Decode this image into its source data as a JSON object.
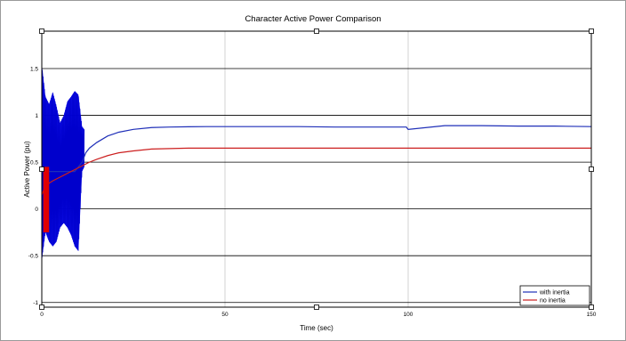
{
  "chart_data": {
    "type": "line",
    "title": "Character Active Power Comparison",
    "xlabel": "Time (sec)",
    "ylabel": "Active Power (pu)",
    "xlim": [
      0,
      150
    ],
    "ylim": [
      -1.05,
      1.9
    ],
    "xticks": [
      "0",
      "50",
      "100",
      "150"
    ],
    "yticks": [
      "-1",
      "-0.5",
      "0",
      "0.5",
      "1",
      "1.5"
    ],
    "grid": true,
    "legend_position": "bottom-right",
    "series": [
      {
        "name": "with inertia",
        "color": "#1f2fb8",
        "x": [
          0,
          1,
          2,
          3,
          4,
          5,
          6,
          7,
          8,
          9,
          10,
          11,
          12,
          13,
          15,
          18,
          21,
          25,
          30,
          35,
          40,
          45,
          50,
          60,
          70,
          80,
          90,
          99.5,
          100,
          110,
          120,
          130,
          140,
          150
        ],
        "y": [
          0.4,
          0.4,
          0.4,
          0.4,
          0.4,
          0.4,
          0.4,
          0.4,
          0.4,
          0.4,
          0.45,
          0.5,
          0.6,
          0.65,
          0.71,
          0.78,
          0.82,
          0.85,
          0.87,
          0.875,
          0.878,
          0.88,
          0.88,
          0.88,
          0.88,
          0.875,
          0.875,
          0.875,
          0.85,
          0.89,
          0.89,
          0.885,
          0.885,
          0.88
        ]
      },
      {
        "name": "no inertia",
        "color": "#cc1f1f",
        "x": [
          0,
          1,
          3,
          6,
          9,
          11,
          12,
          13,
          15,
          18,
          21,
          25,
          30,
          35,
          40,
          50,
          60,
          80,
          100,
          120,
          150
        ],
        "y": [
          0.15,
          0.25,
          0.3,
          0.36,
          0.42,
          0.46,
          0.48,
          0.5,
          0.53,
          0.57,
          0.6,
          0.62,
          0.64,
          0.645,
          0.65,
          0.65,
          0.65,
          0.65,
          0.65,
          0.65,
          0.65
        ]
      }
    ],
    "oscillation_band": {
      "color": "#0000ff",
      "x_range": [
        0,
        11.6
      ],
      "upper": {
        "x": [
          0,
          1,
          2,
          3,
          4,
          5,
          6,
          7,
          8,
          9,
          10,
          11,
          11.6
        ],
        "y": [
          1.55,
          1.2,
          1.12,
          1.25,
          1.1,
          0.92,
          1.0,
          1.15,
          1.2,
          1.26,
          1.22,
          0.88,
          0.85
        ]
      },
      "lower": {
        "x": [
          0,
          1,
          2,
          3,
          4,
          5,
          6,
          7,
          8,
          9,
          10,
          11,
          11.6
        ],
        "y": [
          -0.55,
          -0.25,
          -0.35,
          -0.4,
          -0.35,
          -0.2,
          -0.15,
          -0.2,
          -0.28,
          -0.4,
          -0.45,
          0.4,
          0.45
        ]
      }
    },
    "red_burst": {
      "x_range": [
        0.4,
        2.0
      ],
      "y_range": [
        -0.25,
        0.45
      ]
    }
  }
}
